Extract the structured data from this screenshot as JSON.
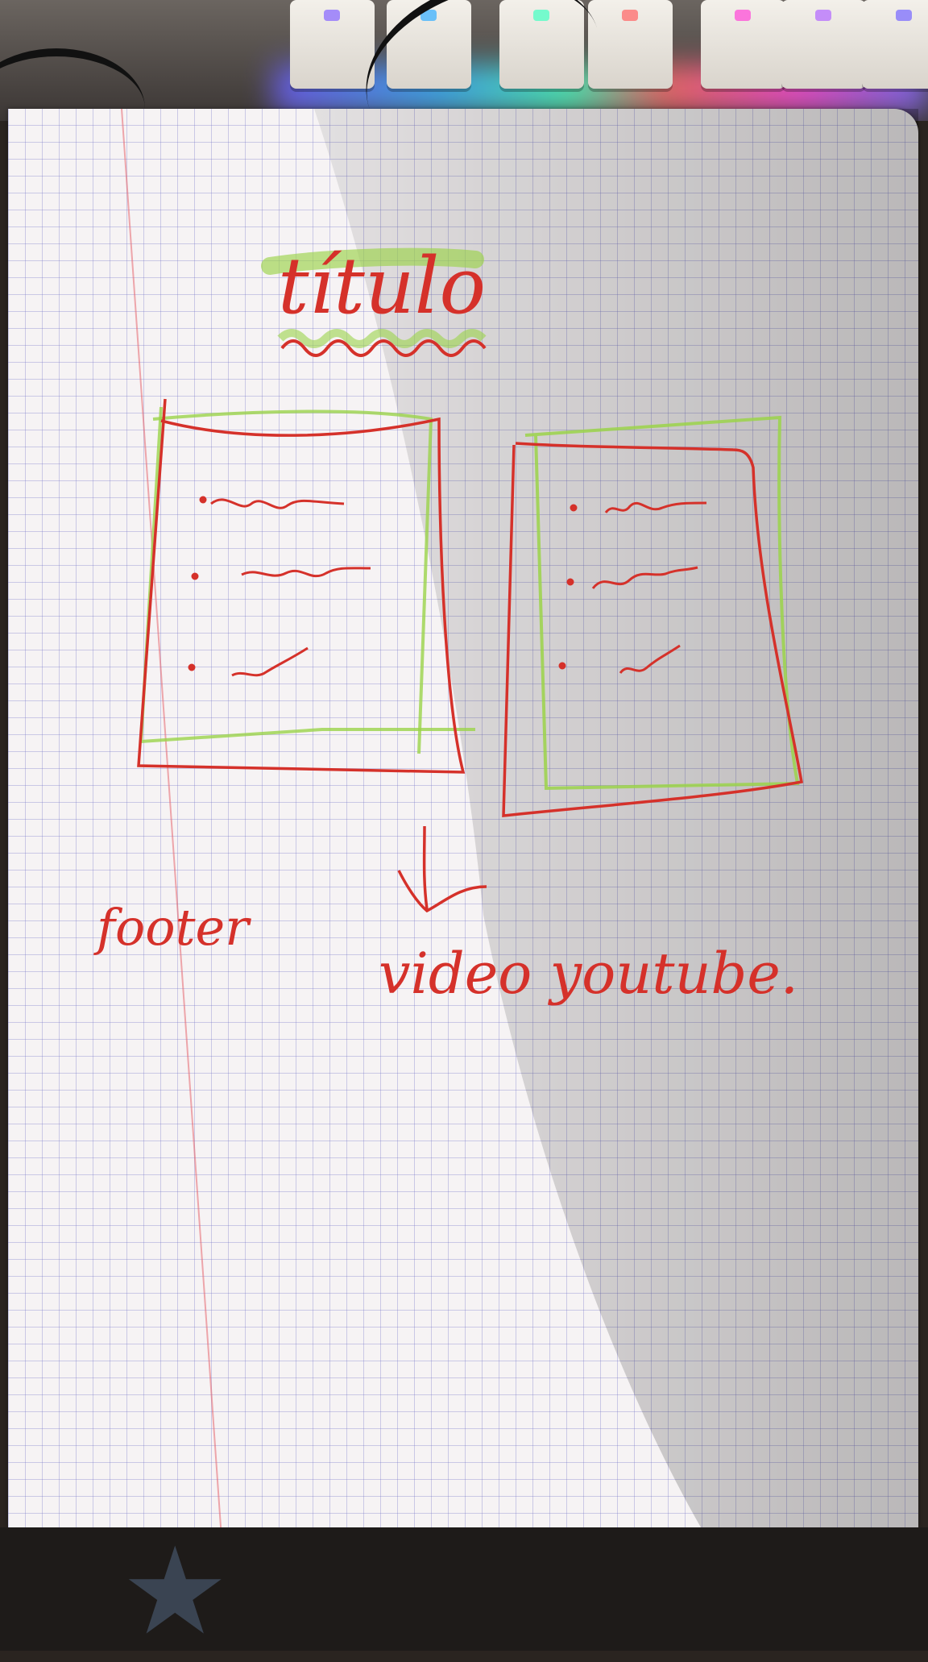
{
  "sketch": {
    "title": "título",
    "footer_label": "footer",
    "video_label": "video youtube."
  },
  "colors": {
    "paper": "#f6f3f4",
    "grid": "#7878c8",
    "ink_red": "#d5312a",
    "ink_green": "#9bd34a",
    "margin": "#e6646e"
  },
  "icons": {
    "arrow": "down-arrow-icon",
    "star": "star-icon"
  }
}
